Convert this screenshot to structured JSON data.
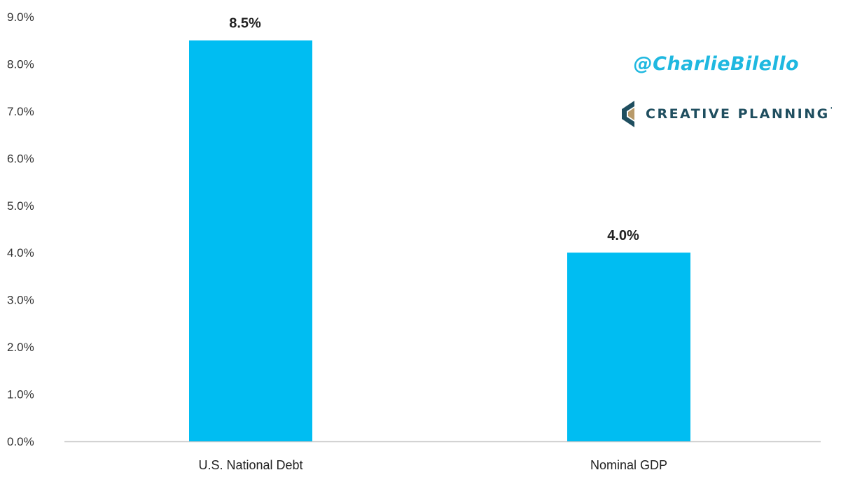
{
  "branding": {
    "handle": "@CharlieBilello",
    "company": "CREATIVE PLANNING",
    "company_mark": "'",
    "company_logo_icon": "creative-planning-c-logo-icon"
  },
  "colors": {
    "bar": "#00bdf2",
    "axis": "#c8c8c8",
    "handle": "#1fb8e0",
    "brand": "#1f4e5f"
  },
  "chart_data": {
    "type": "bar",
    "title": "",
    "xlabel": "",
    "ylabel": "",
    "categories": [
      "U.S. National Debt",
      "Nominal GDP"
    ],
    "values": [
      8.5,
      4.0
    ],
    "data_labels": [
      "8.5%",
      "4.0%"
    ],
    "ylim": [
      0,
      9
    ],
    "yticks": [
      0,
      1,
      2,
      3,
      4,
      5,
      6,
      7,
      8,
      9
    ],
    "ytick_labels": [
      "0.0%",
      "1.0%",
      "2.0%",
      "3.0%",
      "4.0%",
      "5.0%",
      "6.0%",
      "7.0%",
      "8.0%",
      "9.0%"
    ],
    "grid": false,
    "legend": "none"
  }
}
